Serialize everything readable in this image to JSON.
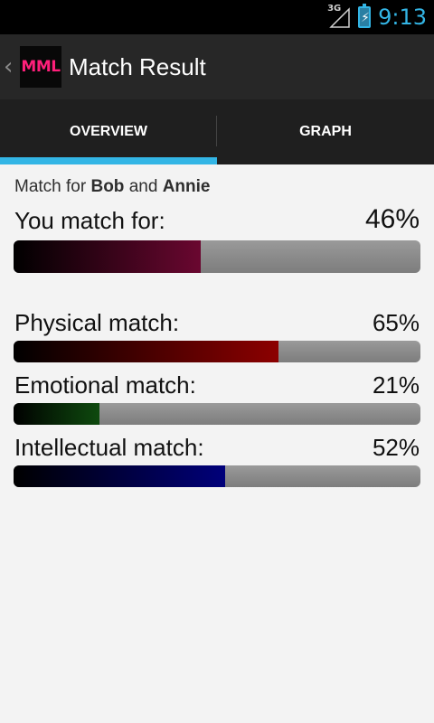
{
  "status_bar": {
    "network": "3G",
    "time": "9:13",
    "battery_color": "#33b5e5"
  },
  "action_bar": {
    "app_icon_text": "MML",
    "title": "Match Result"
  },
  "tabs": [
    {
      "label": "OVERVIEW",
      "selected": true
    },
    {
      "label": "GRAPH",
      "selected": false
    }
  ],
  "match": {
    "prefix": "Match for",
    "person1": "Bob",
    "conjunction": "and",
    "person2": "Annie"
  },
  "overall": {
    "label": "You match for:",
    "percent_text": "46%",
    "value": 46
  },
  "details": [
    {
      "label": "Physical match:",
      "percent_text": "65%",
      "value": 65,
      "color": "#8c0000"
    },
    {
      "label": "Emotional match:",
      "percent_text": "21%",
      "value": 21,
      "color": "#0e4a0e"
    },
    {
      "label": "Intellectual match:",
      "percent_text": "52%",
      "value": 52,
      "color": "#00007a"
    }
  ]
}
